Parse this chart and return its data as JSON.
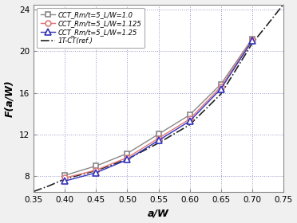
{
  "x": [
    0.4,
    0.45,
    0.5,
    0.55,
    0.6,
    0.65,
    0.7
  ],
  "y_lw10": [
    8.1,
    9.0,
    10.2,
    12.05,
    13.9,
    16.85,
    21.2
  ],
  "y_lw1125": [
    7.85,
    8.6,
    9.8,
    11.65,
    13.5,
    16.6,
    21.1
  ],
  "y_lw125": [
    7.55,
    8.35,
    9.6,
    11.45,
    13.3,
    16.4,
    21.0
  ],
  "x_ref": [
    0.35,
    0.375,
    0.4,
    0.45,
    0.5,
    0.55,
    0.6,
    0.65,
    0.7,
    0.725,
    0.75
  ],
  "y_ref": [
    6.55,
    7.1,
    7.75,
    8.55,
    9.65,
    11.2,
    12.95,
    15.9,
    20.75,
    22.6,
    24.5
  ],
  "color_lw10": "#888888",
  "color_lw1125": "#e07878",
  "color_lw125": "#3333bb",
  "color_ref": "#222222",
  "xlabel": "a/W",
  "ylabel": "F(a/W)",
  "xlim": [
    0.35,
    0.75
  ],
  "ylim": [
    6.5,
    24.5
  ],
  "xticks": [
    0.35,
    0.4,
    0.45,
    0.5,
    0.55,
    0.6,
    0.65,
    0.7,
    0.75
  ],
  "xtick_labels": [
    "0.35",
    "0.40",
    "0.45",
    "0.50",
    "0.55",
    "0.60",
    "0.65",
    "0.70",
    "0.75"
  ],
  "yticks": [
    8,
    12,
    16,
    20,
    24
  ],
  "ytick_labels": [
    "8",
    "12",
    "16",
    "20",
    "24"
  ],
  "label_lw10": "CCT_Rm/t=5_L/W=1.0",
  "label_lw1125": "CCT_Rm/t=5_L/W=1.125",
  "label_lw125": "CCT_Rm/t=5_L/W=1.25",
  "label_ref": "1T-CT(ref.)",
  "grid_color": "#9999cc",
  "plot_bg": "#ffffff",
  "fig_bg": "#f0f0f0"
}
